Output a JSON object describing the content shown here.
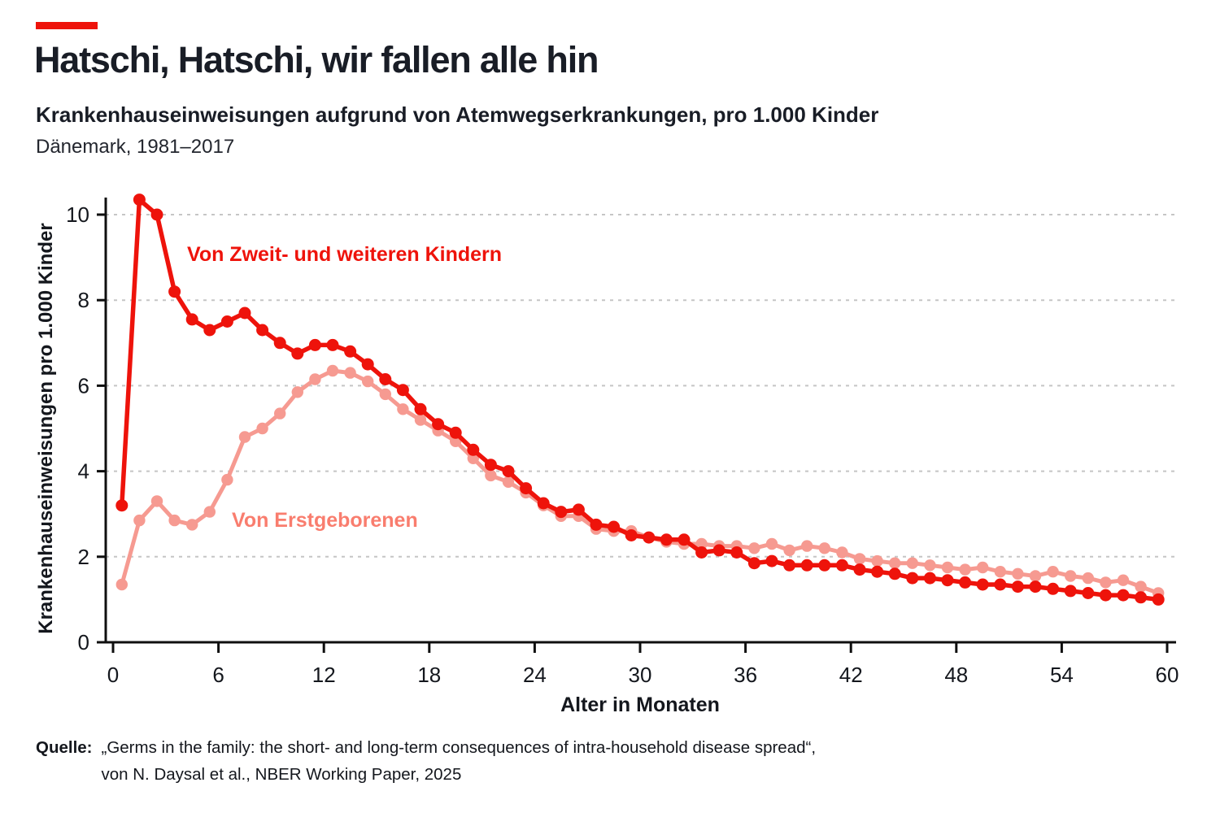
{
  "header": {
    "title": "Hatschi, Hatschi, wir fallen alle hin",
    "subtitle": "Krankenhauseinweisungen aufgrund von Atemwegserkrankungen, pro 1.000 Kinder",
    "dateline": "Dänemark, 1981–2017"
  },
  "chart_data": {
    "type": "line",
    "title": "Hatschi, Hatschi, wir fallen alle hin",
    "subtitle": "Krankenhauseinweisungen aufgrund von Atemwegserkrankungen, pro 1.000 Kinder",
    "region_period": "Dänemark, 1981–2017",
    "xlabel": "Alter in Monaten",
    "ylabel": "Krankenhauseinweisungen pro 1.000 Kinder",
    "xlim": [
      0,
      60.5
    ],
    "ylim": [
      0,
      10.6
    ],
    "x_ticks": [
      0,
      6,
      12,
      18,
      24,
      30,
      36,
      42,
      48,
      54,
      60
    ],
    "y_ticks": [
      0,
      2,
      4,
      6,
      8,
      10
    ],
    "grid": "horizontal-dashed",
    "grid_color": "#c5c5c5",
    "axis_color": "#0f0f0f",
    "x_start": 0.5,
    "x_step": 1,
    "series": [
      {
        "name": "Von Zweit- und weiteren Kindern",
        "color": "#ee130b",
        "label_color": "#ee130b",
        "values": [
          3.2,
          10.35,
          10.0,
          8.2,
          7.55,
          7.3,
          7.5,
          7.7,
          7.3,
          7.0,
          6.75,
          6.95,
          6.95,
          6.8,
          6.5,
          6.15,
          5.9,
          5.45,
          5.1,
          4.9,
          4.5,
          4.15,
          4.0,
          3.6,
          3.25,
          3.05,
          3.1,
          2.75,
          2.7,
          2.5,
          2.45,
          2.4,
          2.4,
          2.1,
          2.15,
          2.1,
          1.85,
          1.9,
          1.8,
          1.8,
          1.8,
          1.8,
          1.7,
          1.65,
          1.6,
          1.5,
          1.5,
          1.45,
          1.4,
          1.35,
          1.35,
          1.3,
          1.3,
          1.25,
          1.2,
          1.15,
          1.1,
          1.1,
          1.05,
          1.0
        ]
      },
      {
        "name": "Von Erstgeborenen",
        "color": "#f69a91",
        "label_color": "#f97d6e",
        "values": [
          1.35,
          2.85,
          3.3,
          2.85,
          2.75,
          3.05,
          3.8,
          4.8,
          5.0,
          5.35,
          5.85,
          6.15,
          6.35,
          6.3,
          6.1,
          5.8,
          5.45,
          5.2,
          4.95,
          4.7,
          4.3,
          3.9,
          3.75,
          3.5,
          3.2,
          2.95,
          2.95,
          2.65,
          2.6,
          2.6,
          2.45,
          2.35,
          2.3,
          2.3,
          2.25,
          2.25,
          2.2,
          2.3,
          2.15,
          2.25,
          2.2,
          2.1,
          1.95,
          1.9,
          1.85,
          1.85,
          1.8,
          1.75,
          1.7,
          1.75,
          1.65,
          1.6,
          1.55,
          1.65,
          1.55,
          1.5,
          1.4,
          1.45,
          1.3,
          1.15
        ]
      }
    ]
  },
  "source": {
    "label": "Quelle:",
    "line1": "„Germs in the family: the short- and long-term consequences of intra-household disease spread“,",
    "line2": "von N. Daysal et al., NBER Working Paper, 2025"
  },
  "colors": {
    "accent_red": "#ee130b",
    "firstborn_pink": "#f69a91",
    "firstborn_label_pink": "#f97d6e",
    "title_dark": "#191d26",
    "gridline_gray": "#c5c5c5"
  }
}
